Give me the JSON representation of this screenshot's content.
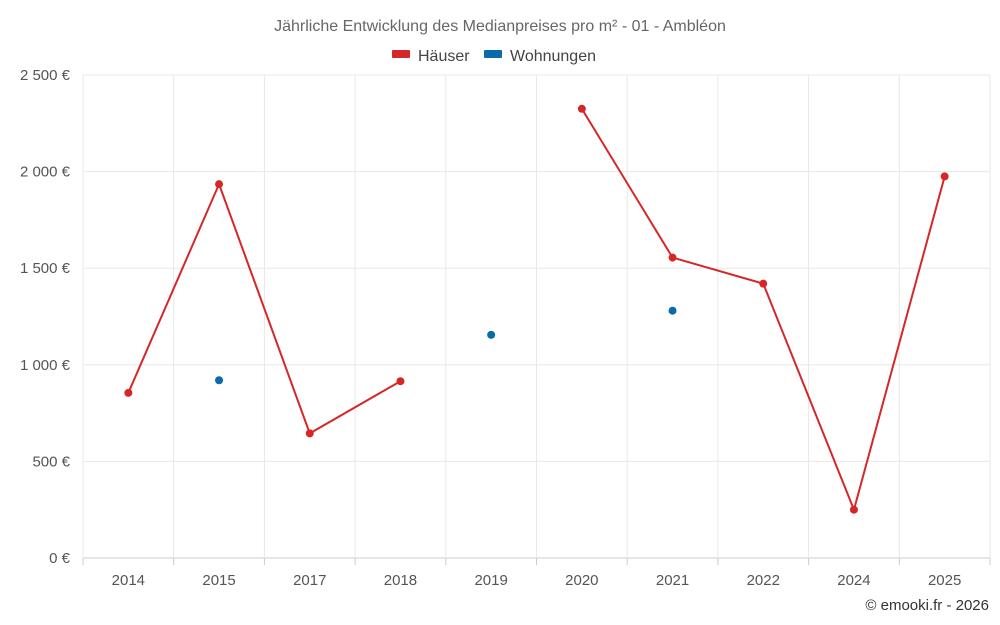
{
  "chart_data": {
    "type": "line",
    "title": "Jährliche Entwicklung des Medianpreises pro m² - 01 - Ambléon",
    "categories": [
      "2014",
      "2015",
      "2017",
      "2018",
      "2019",
      "2020",
      "2021",
      "2022",
      "2024",
      "2025"
    ],
    "series": [
      {
        "name": "Häuser",
        "color": "#d62728",
        "values": [
          855,
          1935,
          645,
          915,
          null,
          2325,
          1555,
          1420,
          250,
          1975
        ]
      },
      {
        "name": "Wohnungen",
        "color": "#0b6aa8",
        "values": [
          null,
          920,
          null,
          null,
          1155,
          null,
          1280,
          null,
          null,
          null
        ]
      }
    ],
    "yticks": [
      0,
      500,
      1000,
      1500,
      2000,
      2500
    ],
    "ytick_labels": [
      "0 €",
      "500 €",
      "1 000 €",
      "1 500 €",
      "2 000 €",
      "2 500 €"
    ],
    "ylim": [
      0,
      2500
    ],
    "grid": true,
    "legend_position": "top-center",
    "credit": "© emooki.fr - 2026"
  }
}
